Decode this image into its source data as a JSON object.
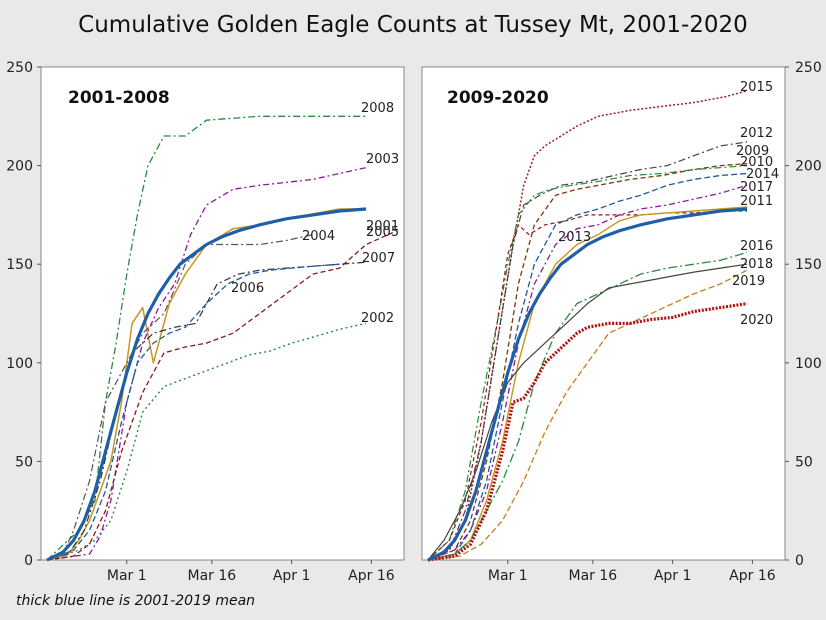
{
  "title": "Cumulative Golden Eagle Counts at Tussey Mt, 2001-2020",
  "footnote": "thick blue line is 2001-2019 mean",
  "chart_data": [
    {
      "type": "line",
      "title": "2001-2008",
      "x_ticks": [
        "Mar 1",
        "Mar 16",
        "Apr 1",
        "Apr 16"
      ],
      "y_ticks": [
        0,
        50,
        100,
        150,
        200,
        250
      ],
      "ylim": [
        0,
        250
      ],
      "x_unit": "day of season (0 = Feb 15)",
      "xlim": [
        0,
        66
      ],
      "series": [
        {
          "name": "2008",
          "color": "#2a8a3a",
          "dash": "7 3 2 3",
          "width": 1.3,
          "x": [
            0,
            6,
            9,
            11,
            13,
            15,
            17,
            19,
            22,
            26,
            30,
            40,
            50,
            60
          ],
          "y": [
            0,
            15,
            30,
            80,
            110,
            145,
            175,
            200,
            215,
            215,
            223,
            225,
            225,
            225
          ]
        },
        {
          "name": "2003",
          "color": "#8a1a9a",
          "dash": "6 3 2 3",
          "width": 1.3,
          "x": [
            0,
            8,
            10,
            12,
            15,
            18,
            21,
            24,
            27,
            30,
            35,
            40,
            50,
            60
          ],
          "y": [
            0,
            3,
            12,
            30,
            80,
            110,
            128,
            140,
            165,
            180,
            188,
            190,
            193,
            199
          ]
        },
        {
          "name": "2005",
          "color": "#c8961e",
          "dash": "",
          "width": 1.5,
          "x": [
            0,
            4,
            6,
            8,
            10,
            12,
            14,
            16,
            18,
            20,
            23,
            26,
            30,
            35,
            40,
            45,
            55,
            60
          ],
          "y": [
            0,
            3,
            10,
            20,
            35,
            50,
            80,
            120,
            128,
            100,
            130,
            145,
            160,
            168,
            170,
            173,
            178,
            178
          ]
        },
        {
          "name": "2004",
          "color": "#555555",
          "dash": "7 3 2 3",
          "width": 1.2,
          "x": [
            0,
            3,
            5,
            8,
            11,
            14,
            18,
            22,
            26,
            30,
            35,
            40,
            45,
            50
          ],
          "y": [
            0,
            3,
            15,
            40,
            80,
            95,
            115,
            125,
            150,
            160,
            160,
            160,
            162,
            165
          ]
        },
        {
          "name": "2001",
          "color": "#8a1a1a",
          "dash": "5 3",
          "width": 1.3,
          "x": [
            0,
            5,
            8,
            11,
            14,
            18,
            22,
            26,
            30,
            35,
            40,
            45,
            50,
            55,
            60,
            65
          ],
          "y": [
            0,
            2,
            8,
            25,
            55,
            85,
            105,
            108,
            110,
            115,
            125,
            135,
            145,
            148,
            160,
            166
          ]
        },
        {
          "name": "2007",
          "color": "#333333",
          "dash": "7 3 2 3",
          "width": 1.2,
          "x": [
            0,
            4,
            7,
            10,
            13,
            16,
            20,
            24,
            28,
            32,
            36,
            40,
            45,
            50,
            55,
            60
          ],
          "y": [
            0,
            3,
            15,
            40,
            75,
            105,
            115,
            118,
            120,
            140,
            145,
            147,
            148,
            149,
            150,
            151
          ]
        },
        {
          "name": "2006",
          "color": "#1e5a9a",
          "dash": "6 3",
          "width": 1.3,
          "x": [
            0,
            5,
            8,
            11,
            14,
            17,
            20,
            23,
            26,
            30,
            34,
            38,
            42,
            50,
            55
          ],
          "y": [
            0,
            5,
            15,
            35,
            70,
            100,
            110,
            115,
            118,
            130,
            140,
            145,
            147,
            149,
            150
          ]
        },
        {
          "name": "2002",
          "color": "#2a8a3a",
          "dash": "2 3",
          "width": 1.4,
          "x": [
            0,
            6,
            9,
            12,
            15,
            18,
            22,
            26,
            30,
            34,
            38,
            42,
            46,
            50,
            55,
            60
          ],
          "y": [
            0,
            5,
            10,
            20,
            45,
            75,
            88,
            92,
            96,
            100,
            104,
            106,
            110,
            113,
            117,
            120
          ]
        },
        {
          "name": "mean",
          "color": "#1f5fa8",
          "dash": "",
          "width": 3.2,
          "x": [
            0,
            3,
            5,
            7,
            9,
            11,
            13,
            15,
            17,
            19,
            21,
            23,
            25,
            27,
            30,
            33,
            36,
            40,
            45,
            50,
            55,
            60
          ],
          "y": [
            0,
            4,
            10,
            20,
            35,
            55,
            75,
            95,
            112,
            125,
            135,
            143,
            150,
            154,
            160,
            164,
            167,
            170,
            173,
            175,
            177,
            178
          ]
        }
      ],
      "year_labels": [
        "2008",
        "2003",
        "2005",
        "2004",
        "2001",
        "2007",
        "2006",
        "2002"
      ]
    },
    {
      "type": "line",
      "title": "2009-2020",
      "x_ticks": [
        "Mar 1",
        "Mar 16",
        "Apr 1",
        "Apr 16"
      ],
      "y_ticks": [
        0,
        50,
        100,
        150,
        200,
        250
      ],
      "ylim": [
        0,
        250
      ],
      "x_unit": "day of season (0 = Feb 15)",
      "xlim": [
        0,
        66
      ],
      "series": [
        {
          "name": "2015",
          "color": "#a01a1a",
          "dash": "2 2",
          "width": 1.5,
          "x": [
            0,
            4,
            7,
            10,
            13,
            16,
            18,
            20,
            22,
            25,
            28,
            32,
            38,
            44,
            50,
            56,
            60
          ],
          "y": [
            0,
            5,
            20,
            60,
            110,
            160,
            190,
            205,
            210,
            215,
            220,
            225,
            228,
            230,
            232,
            235,
            238
          ]
        },
        {
          "name": "2012",
          "color": "#444444",
          "dash": "7 3 2 3",
          "width": 1.2,
          "x": [
            0,
            4,
            7,
            10,
            13,
            16,
            18,
            21,
            25,
            30,
            35,
            40,
            45,
            50,
            55,
            60
          ],
          "y": [
            0,
            5,
            25,
            60,
            110,
            160,
            180,
            185,
            190,
            192,
            195,
            198,
            200,
            205,
            210,
            212
          ]
        },
        {
          "name": "2009",
          "color": "#7a3a0a",
          "dash": "5 3",
          "width": 1.3,
          "x": [
            0,
            5,
            8,
            11,
            14,
            17,
            20,
            24,
            28,
            32,
            38,
            44,
            50,
            55,
            60
          ],
          "y": [
            0,
            5,
            20,
            50,
            90,
            140,
            170,
            185,
            188,
            190,
            193,
            195,
            198,
            200,
            201
          ]
        },
        {
          "name": "2010",
          "color": "#2a8a3a",
          "dash": "7 3 2 3",
          "width": 1.2,
          "x": [
            0,
            4,
            7,
            10,
            13,
            15,
            17,
            20,
            23,
            27,
            32,
            38,
            44,
            50,
            55,
            60
          ],
          "y": [
            0,
            10,
            35,
            80,
            120,
            150,
            175,
            185,
            188,
            190,
            192,
            195,
            196,
            198,
            199,
            200
          ]
        },
        {
          "name": "2014",
          "color": "#1e5a9a",
          "dash": "6 3",
          "width": 1.3,
          "x": [
            0,
            5,
            8,
            11,
            14,
            17,
            20,
            24,
            28,
            32,
            36,
            40,
            45,
            50,
            55,
            60
          ],
          "y": [
            0,
            3,
            15,
            40,
            80,
            120,
            150,
            170,
            175,
            178,
            182,
            185,
            190,
            193,
            195,
            196
          ]
        },
        {
          "name": "2017",
          "color": "#8a1a9a",
          "dash": "6 3 2 3",
          "width": 1.3,
          "x": [
            0,
            5,
            8,
            11,
            14,
            17,
            20,
            24,
            28,
            32,
            36,
            40,
            45,
            50,
            55,
            60
          ],
          "y": [
            0,
            5,
            15,
            35,
            70,
            110,
            140,
            160,
            168,
            170,
            175,
            178,
            180,
            183,
            186,
            190
          ]
        },
        {
          "name": "2013",
          "color": "#8a1a1a",
          "dash": "4 3",
          "width": 1.2,
          "x": [
            0,
            4,
            7,
            10,
            13,
            15,
            17,
            19,
            22,
            26,
            30,
            35,
            40,
            45,
            50,
            55,
            60
          ],
          "y": [
            0,
            10,
            30,
            70,
            120,
            155,
            170,
            165,
            170,
            172,
            175,
            175,
            175,
            176,
            176,
            177,
            177
          ]
        },
        {
          "name": "2011",
          "color": "#c8961e",
          "dash": "",
          "width": 1.4,
          "x": [
            0,
            5,
            8,
            11,
            14,
            17,
            20,
            24,
            28,
            32,
            36,
            40,
            45,
            50,
            55,
            60
          ],
          "y": [
            0,
            3,
            10,
            30,
            60,
            100,
            130,
            150,
            160,
            165,
            172,
            175,
            176,
            177,
            178,
            179
          ]
        },
        {
          "name": "2016",
          "color": "#2a8a3a",
          "dash": "9 3 2 3",
          "width": 1.3,
          "x": [
            0,
            5,
            8,
            11,
            14,
            17,
            20,
            24,
            28,
            32,
            36,
            40,
            45,
            50,
            55,
            60
          ],
          "y": [
            0,
            3,
            10,
            25,
            40,
            60,
            90,
            115,
            130,
            135,
            140,
            145,
            148,
            150,
            152,
            156
          ]
        },
        {
          "name": "2018",
          "color": "#444444",
          "dash": "",
          "width": 1.2,
          "x": [
            0,
            3,
            6,
            9,
            12,
            15,
            18,
            22,
            26,
            30,
            34,
            38,
            42,
            46,
            50,
            55,
            60
          ],
          "y": [
            0,
            10,
            25,
            45,
            70,
            90,
            100,
            110,
            120,
            130,
            138,
            140,
            142,
            144,
            146,
            148,
            150
          ]
        },
        {
          "name": "2019",
          "color": "#c87a1a",
          "dash": "6 3",
          "width": 1.3,
          "x": [
            0,
            6,
            10,
            14,
            18,
            22,
            26,
            30,
            34,
            38,
            42,
            46,
            50,
            55,
            60
          ],
          "y": [
            0,
            2,
            8,
            20,
            40,
            65,
            85,
            100,
            115,
            120,
            125,
            130,
            135,
            140,
            147
          ]
        },
        {
          "name": "2020",
          "color": "#b01010",
          "dash": "2 1.5",
          "width": 3.2,
          "x": [
            0,
            5,
            8,
            11,
            14,
            16,
            18,
            20,
            22,
            24,
            26,
            28,
            30,
            34,
            38,
            42,
            46,
            50,
            55,
            60
          ],
          "y": [
            0,
            2,
            8,
            25,
            55,
            80,
            82,
            90,
            100,
            105,
            110,
            115,
            118,
            120,
            120,
            122,
            123,
            126,
            128,
            130
          ]
        },
        {
          "name": "mean",
          "color": "#1f5fa8",
          "dash": "",
          "width": 3.2,
          "x": [
            0,
            3,
            5,
            7,
            9,
            11,
            13,
            15,
            17,
            19,
            21,
            23,
            25,
            27,
            30,
            33,
            36,
            40,
            45,
            50,
            55,
            60
          ],
          "y": [
            0,
            4,
            10,
            20,
            35,
            55,
            75,
            95,
            112,
            125,
            135,
            143,
            150,
            154,
            160,
            164,
            167,
            170,
            173,
            175,
            177,
            178
          ]
        }
      ],
      "year_labels": [
        "2015",
        "2012",
        "2009",
        "2010",
        "2014",
        "2017",
        "2011",
        "2016",
        "2018",
        "2019",
        "2020",
        "2013"
      ]
    }
  ]
}
